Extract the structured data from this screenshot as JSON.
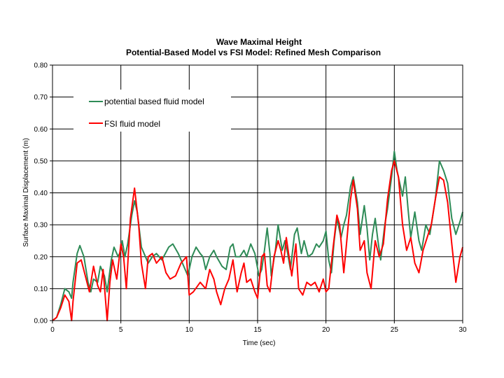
{
  "chart_data": {
    "type": "line",
    "title": "Wave Maximal Height",
    "subtitle": "Potential-Based Model vs FSI Model: Refined Mesh Comparison",
    "xlabel": "Time (sec)",
    "ylabel": "Surface Maximal Displacement (m)",
    "xlim": [
      0,
      30
    ],
    "ylim": [
      0,
      0.8
    ],
    "x_ticks": [
      "0",
      "5",
      "10",
      "15",
      "20",
      "25",
      "30"
    ],
    "y_ticks": [
      "0.00",
      "0.10",
      "0.20",
      "0.30",
      "0.40",
      "0.50",
      "0.60",
      "0.70",
      "0.80"
    ],
    "grid": "major gridlines on both axes",
    "legend_position": "top-left inside plot",
    "series": [
      {
        "name": "potential based fluid model",
        "color": "#2e8b57",
        "points": [
          [
            0,
            0.0
          ],
          [
            0.3,
            0.01
          ],
          [
            0.6,
            0.05
          ],
          [
            0.9,
            0.1
          ],
          [
            1.2,
            0.09
          ],
          [
            1.4,
            0.07
          ],
          [
            1.5,
            0.12
          ],
          [
            1.8,
            0.21
          ],
          [
            2.0,
            0.235
          ],
          [
            2.3,
            0.2
          ],
          [
            2.6,
            0.12
          ],
          [
            2.8,
            0.09
          ],
          [
            3.0,
            0.13
          ],
          [
            3.3,
            0.12
          ],
          [
            3.5,
            0.17
          ],
          [
            3.8,
            0.14
          ],
          [
            4.0,
            0.09
          ],
          [
            4.3,
            0.19
          ],
          [
            4.5,
            0.23
          ],
          [
            4.8,
            0.2
          ],
          [
            5.0,
            0.22
          ],
          [
            5.1,
            0.25
          ],
          [
            5.3,
            0.2
          ],
          [
            5.5,
            0.24
          ],
          [
            5.8,
            0.33
          ],
          [
            6.0,
            0.375
          ],
          [
            6.2,
            0.34
          ],
          [
            6.5,
            0.23
          ],
          [
            6.8,
            0.2
          ],
          [
            7.0,
            0.18
          ],
          [
            7.3,
            0.2
          ],
          [
            7.6,
            0.21
          ],
          [
            8.0,
            0.19
          ],
          [
            8.5,
            0.23
          ],
          [
            8.8,
            0.24
          ],
          [
            9.2,
            0.21
          ],
          [
            9.5,
            0.18
          ],
          [
            9.9,
            0.14
          ],
          [
            10.2,
            0.2
          ],
          [
            10.5,
            0.23
          ],
          [
            10.8,
            0.21
          ],
          [
            11.0,
            0.2
          ],
          [
            11.2,
            0.16
          ],
          [
            11.5,
            0.2
          ],
          [
            11.8,
            0.22
          ],
          [
            12.0,
            0.2
          ],
          [
            12.4,
            0.17
          ],
          [
            12.7,
            0.16
          ],
          [
            13.0,
            0.23
          ],
          [
            13.2,
            0.24
          ],
          [
            13.4,
            0.2
          ],
          [
            13.7,
            0.2
          ],
          [
            14.0,
            0.22
          ],
          [
            14.2,
            0.2
          ],
          [
            14.5,
            0.24
          ],
          [
            14.8,
            0.21
          ],
          [
            15.1,
            0.14
          ],
          [
            15.3,
            0.16
          ],
          [
            15.5,
            0.22
          ],
          [
            15.7,
            0.29
          ],
          [
            15.9,
            0.21
          ],
          [
            16.0,
            0.14
          ],
          [
            16.3,
            0.22
          ],
          [
            16.5,
            0.3
          ],
          [
            16.8,
            0.22
          ],
          [
            17.0,
            0.25
          ],
          [
            17.2,
            0.21
          ],
          [
            17.4,
            0.16
          ],
          [
            17.7,
            0.27
          ],
          [
            17.9,
            0.29
          ],
          [
            18.2,
            0.21
          ],
          [
            18.4,
            0.25
          ],
          [
            18.7,
            0.2
          ],
          [
            19.0,
            0.21
          ],
          [
            19.3,
            0.24
          ],
          [
            19.5,
            0.23
          ],
          [
            19.8,
            0.25
          ],
          [
            20.0,
            0.28
          ],
          [
            20.2,
            0.19
          ],
          [
            20.4,
            0.15
          ],
          [
            20.6,
            0.25
          ],
          [
            20.8,
            0.32
          ],
          [
            21.1,
            0.26
          ],
          [
            21.3,
            0.3
          ],
          [
            21.5,
            0.33
          ],
          [
            21.8,
            0.42
          ],
          [
            22.0,
            0.45
          ],
          [
            22.3,
            0.37
          ],
          [
            22.5,
            0.27
          ],
          [
            22.8,
            0.36
          ],
          [
            23.0,
            0.29
          ],
          [
            23.2,
            0.19
          ],
          [
            23.4,
            0.27
          ],
          [
            23.6,
            0.32
          ],
          [
            23.8,
            0.25
          ],
          [
            24.0,
            0.19
          ],
          [
            24.3,
            0.3
          ],
          [
            24.5,
            0.35
          ],
          [
            24.8,
            0.45
          ],
          [
            25.0,
            0.53
          ],
          [
            25.2,
            0.47
          ],
          [
            25.4,
            0.43
          ],
          [
            25.6,
            0.39
          ],
          [
            25.8,
            0.45
          ],
          [
            26.0,
            0.35
          ],
          [
            26.2,
            0.26
          ],
          [
            26.5,
            0.34
          ],
          [
            26.8,
            0.25
          ],
          [
            27.0,
            0.22
          ],
          [
            27.3,
            0.3
          ],
          [
            27.6,
            0.27
          ],
          [
            28.0,
            0.38
          ],
          [
            28.3,
            0.5
          ],
          [
            28.6,
            0.47
          ],
          [
            28.9,
            0.43
          ],
          [
            29.2,
            0.32
          ],
          [
            29.5,
            0.27
          ],
          [
            29.8,
            0.31
          ],
          [
            30.0,
            0.34
          ]
        ]
      },
      {
        "name": "FSI fluid model",
        "color": "#ff0000",
        "points": [
          [
            0,
            0.0
          ],
          [
            0.3,
            0.01
          ],
          [
            0.6,
            0.04
          ],
          [
            0.9,
            0.08
          ],
          [
            1.2,
            0.06
          ],
          [
            1.4,
            0.0
          ],
          [
            1.5,
            0.06
          ],
          [
            1.8,
            0.18
          ],
          [
            2.1,
            0.19
          ],
          [
            2.4,
            0.14
          ],
          [
            2.7,
            0.09
          ],
          [
            3.0,
            0.17
          ],
          [
            3.3,
            0.11
          ],
          [
            3.5,
            0.09
          ],
          [
            3.7,
            0.16
          ],
          [
            4.0,
            0.0
          ],
          [
            4.2,
            0.12
          ],
          [
            4.4,
            0.19
          ],
          [
            4.7,
            0.13
          ],
          [
            5.0,
            0.24
          ],
          [
            5.2,
            0.2
          ],
          [
            5.4,
            0.1
          ],
          [
            5.7,
            0.32
          ],
          [
            6.0,
            0.415
          ],
          [
            6.3,
            0.3
          ],
          [
            6.5,
            0.18
          ],
          [
            6.8,
            0.1
          ],
          [
            7.0,
            0.2
          ],
          [
            7.3,
            0.21
          ],
          [
            7.6,
            0.18
          ],
          [
            8.0,
            0.2
          ],
          [
            8.3,
            0.15
          ],
          [
            8.6,
            0.13
          ],
          [
            9.0,
            0.14
          ],
          [
            9.4,
            0.18
          ],
          [
            9.8,
            0.2
          ],
          [
            10.0,
            0.08
          ],
          [
            10.3,
            0.09
          ],
          [
            10.8,
            0.12
          ],
          [
            11.2,
            0.1
          ],
          [
            11.5,
            0.16
          ],
          [
            11.8,
            0.13
          ],
          [
            12.0,
            0.09
          ],
          [
            12.3,
            0.05
          ],
          [
            12.6,
            0.1
          ],
          [
            12.9,
            0.13
          ],
          [
            13.2,
            0.19
          ],
          [
            13.5,
            0.09
          ],
          [
            13.8,
            0.15
          ],
          [
            14.0,
            0.18
          ],
          [
            14.2,
            0.12
          ],
          [
            14.5,
            0.13
          ],
          [
            14.8,
            0.09
          ],
          [
            15.0,
            0.07
          ],
          [
            15.3,
            0.2
          ],
          [
            15.5,
            0.21
          ],
          [
            15.7,
            0.11
          ],
          [
            15.9,
            0.09
          ],
          [
            16.2,
            0.2
          ],
          [
            16.5,
            0.25
          ],
          [
            16.7,
            0.22
          ],
          [
            16.9,
            0.18
          ],
          [
            17.1,
            0.26
          ],
          [
            17.3,
            0.2
          ],
          [
            17.5,
            0.14
          ],
          [
            17.8,
            0.24
          ],
          [
            18.0,
            0.1
          ],
          [
            18.3,
            0.08
          ],
          [
            18.6,
            0.12
          ],
          [
            18.9,
            0.11
          ],
          [
            19.2,
            0.12
          ],
          [
            19.5,
            0.09
          ],
          [
            19.8,
            0.13
          ],
          [
            20.0,
            0.09
          ],
          [
            20.2,
            0.1
          ],
          [
            20.5,
            0.22
          ],
          [
            20.8,
            0.33
          ],
          [
            21.0,
            0.3
          ],
          [
            21.3,
            0.15
          ],
          [
            21.5,
            0.24
          ],
          [
            21.8,
            0.38
          ],
          [
            22.0,
            0.44
          ],
          [
            22.3,
            0.35
          ],
          [
            22.5,
            0.22
          ],
          [
            22.8,
            0.25
          ],
          [
            23.0,
            0.15
          ],
          [
            23.3,
            0.1
          ],
          [
            23.6,
            0.25
          ],
          [
            23.9,
            0.2
          ],
          [
            24.2,
            0.24
          ],
          [
            24.5,
            0.38
          ],
          [
            24.8,
            0.47
          ],
          [
            25.0,
            0.5
          ],
          [
            25.3,
            0.45
          ],
          [
            25.6,
            0.3
          ],
          [
            25.9,
            0.22
          ],
          [
            26.2,
            0.26
          ],
          [
            26.5,
            0.18
          ],
          [
            26.8,
            0.15
          ],
          [
            27.1,
            0.22
          ],
          [
            27.4,
            0.26
          ],
          [
            27.7,
            0.3
          ],
          [
            28.0,
            0.38
          ],
          [
            28.3,
            0.45
          ],
          [
            28.6,
            0.44
          ],
          [
            28.9,
            0.37
          ],
          [
            29.2,
            0.24
          ],
          [
            29.5,
            0.12
          ],
          [
            29.8,
            0.2
          ],
          [
            30.0,
            0.23
          ]
        ]
      }
    ]
  }
}
